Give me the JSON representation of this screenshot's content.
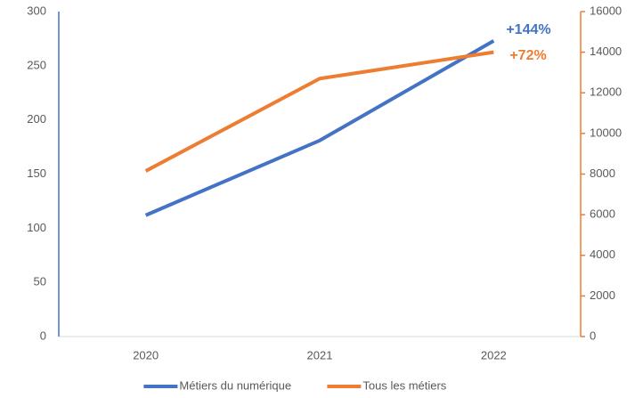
{
  "chart_data": {
    "type": "line",
    "categories": [
      "2020",
      "2021",
      "2022"
    ],
    "series": [
      {
        "name": "Métiers du numérique",
        "color": "#4472c4",
        "values": [
          112,
          181,
          273
        ]
      },
      {
        "name": "Tous les métiers",
        "color": "#ed7d31",
        "values": [
          8150,
          12700,
          14000
        ],
        "axis": "y2"
      }
    ],
    "annotations": [
      "+144%",
      "+72%"
    ],
    "ylim": [
      0,
      300
    ],
    "yticks": [
      0,
      50,
      100,
      150,
      200,
      250,
      300
    ],
    "y2lim": [
      0,
      16000
    ],
    "y2ticks": [
      0,
      2000,
      4000,
      6000,
      8000,
      10000,
      12000,
      14000,
      16000
    ],
    "grid": false,
    "legend": "bottom"
  }
}
